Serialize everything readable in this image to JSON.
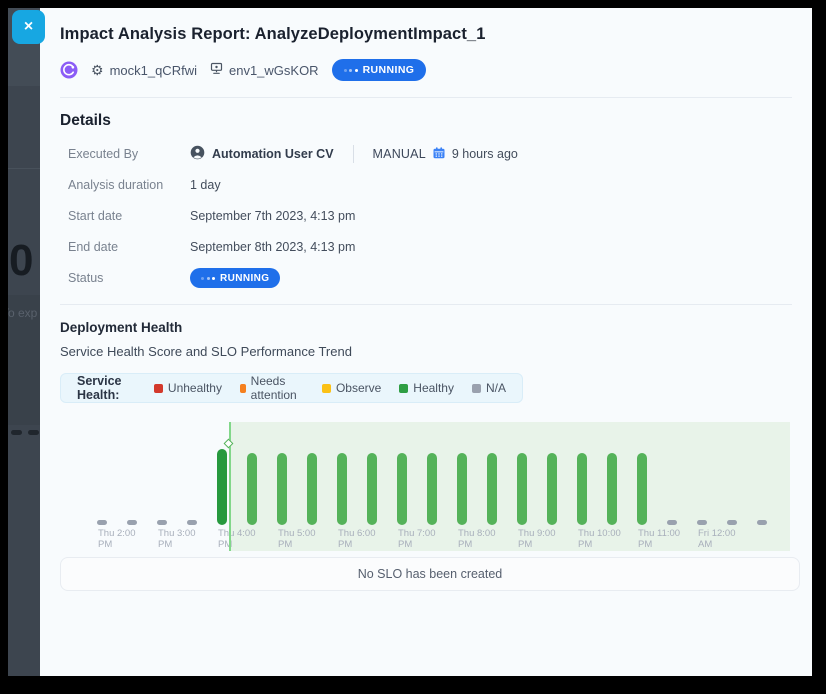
{
  "modal": {
    "title": "Impact Analysis Report: AnalyzeDeploymentImpact_1",
    "close_label": "×",
    "meta": {
      "service_name": "mock1_qCRfwi",
      "environment_name": "env1_wGsKOR",
      "status_badge": "RUNNING"
    },
    "details": {
      "heading": "Details",
      "executed_by_label": "Executed By",
      "executed_by_user": "Automation User CV",
      "executed_by_mode": "MANUAL",
      "executed_by_time": "9 hours ago",
      "duration_label": "Analysis duration",
      "duration_value": "1 day",
      "start_label": "Start date",
      "start_value": "September 7th 2023, 4:13 pm",
      "end_label": "End date",
      "end_value": "September 8th 2023, 4:13 pm",
      "status_label": "Status",
      "status_value": "RUNNING"
    },
    "health": {
      "heading": "Deployment Health",
      "subtitle": "Service Health Score and SLO Performance Trend",
      "legend_title": "Service Health:",
      "legend": [
        {
          "label": "Unhealthy",
          "color": "#d3392c"
        },
        {
          "label": "Needs attention",
          "color": "#f5801f"
        },
        {
          "label": "Observe",
          "color": "#fbc116"
        },
        {
          "label": "Healthy",
          "color": "#2f9e44"
        },
        {
          "label": "N/A",
          "color": "#9aa1ae"
        }
      ],
      "empty_slo_message": "No SLO has been created"
    }
  },
  "backdrop": {
    "big_number": "0",
    "partial_text": "To exp"
  },
  "chart_data": {
    "type": "bar",
    "title": "Service Health Score and SLO Performance Trend",
    "x_axis": "time, 30-minute intervals",
    "y_axis": "service health status",
    "legend_position": "top",
    "deployment_marker": {
      "time": "Thu 4:13 PM",
      "after_index": 4
    },
    "status_colors": {
      "na": "#99a1ae",
      "healthy": "#54b259",
      "healthy_dark": "#27993e"
    },
    "region_color": "#e8f3e9",
    "points": [
      {
        "t": "Thu 2:00 PM",
        "status": "na",
        "axis_label": "Thu 2:00|PM"
      },
      {
        "t": "Thu 2:30 PM",
        "status": "na"
      },
      {
        "t": "Thu 3:00 PM",
        "status": "na",
        "axis_label": "Thu 3:00|PM"
      },
      {
        "t": "Thu 3:30 PM",
        "status": "na"
      },
      {
        "t": "Thu 4:00 PM",
        "status": "healthy_dark",
        "axis_label": "Thu 4:00|PM"
      },
      {
        "t": "Thu 4:30 PM",
        "status": "healthy"
      },
      {
        "t": "Thu 5:00 PM",
        "status": "healthy",
        "axis_label": "Thu 5:00|PM"
      },
      {
        "t": "Thu 5:30 PM",
        "status": "healthy"
      },
      {
        "t": "Thu 6:00 PM",
        "status": "healthy",
        "axis_label": "Thu 6:00|PM"
      },
      {
        "t": "Thu 6:30 PM",
        "status": "healthy"
      },
      {
        "t": "Thu 7:00 PM",
        "status": "healthy",
        "axis_label": "Thu 7:00|PM"
      },
      {
        "t": "Thu 7:30 PM",
        "status": "healthy"
      },
      {
        "t": "Thu 8:00 PM",
        "status": "healthy",
        "axis_label": "Thu 8:00|PM"
      },
      {
        "t": "Thu 8:30 PM",
        "status": "healthy"
      },
      {
        "t": "Thu 9:00 PM",
        "status": "healthy",
        "axis_label": "Thu 9:00|PM"
      },
      {
        "t": "Thu 9:30 PM",
        "status": "healthy"
      },
      {
        "t": "Thu 10:00 PM",
        "status": "healthy",
        "axis_label": "Thu 10:00|PM"
      },
      {
        "t": "Thu 10:30 PM",
        "status": "healthy"
      },
      {
        "t": "Thu 11:00 PM",
        "status": "healthy",
        "axis_label": "Thu 11:00|PM"
      },
      {
        "t": "Thu 11:30 PM",
        "status": "na"
      },
      {
        "t": "Fri 12:00 AM",
        "status": "na",
        "axis_label": "Fri 12:00|AM"
      },
      {
        "t": "Fri 12:30 AM",
        "status": "na"
      },
      {
        "t": "Fri 1:00 AM",
        "status": "na"
      }
    ]
  }
}
